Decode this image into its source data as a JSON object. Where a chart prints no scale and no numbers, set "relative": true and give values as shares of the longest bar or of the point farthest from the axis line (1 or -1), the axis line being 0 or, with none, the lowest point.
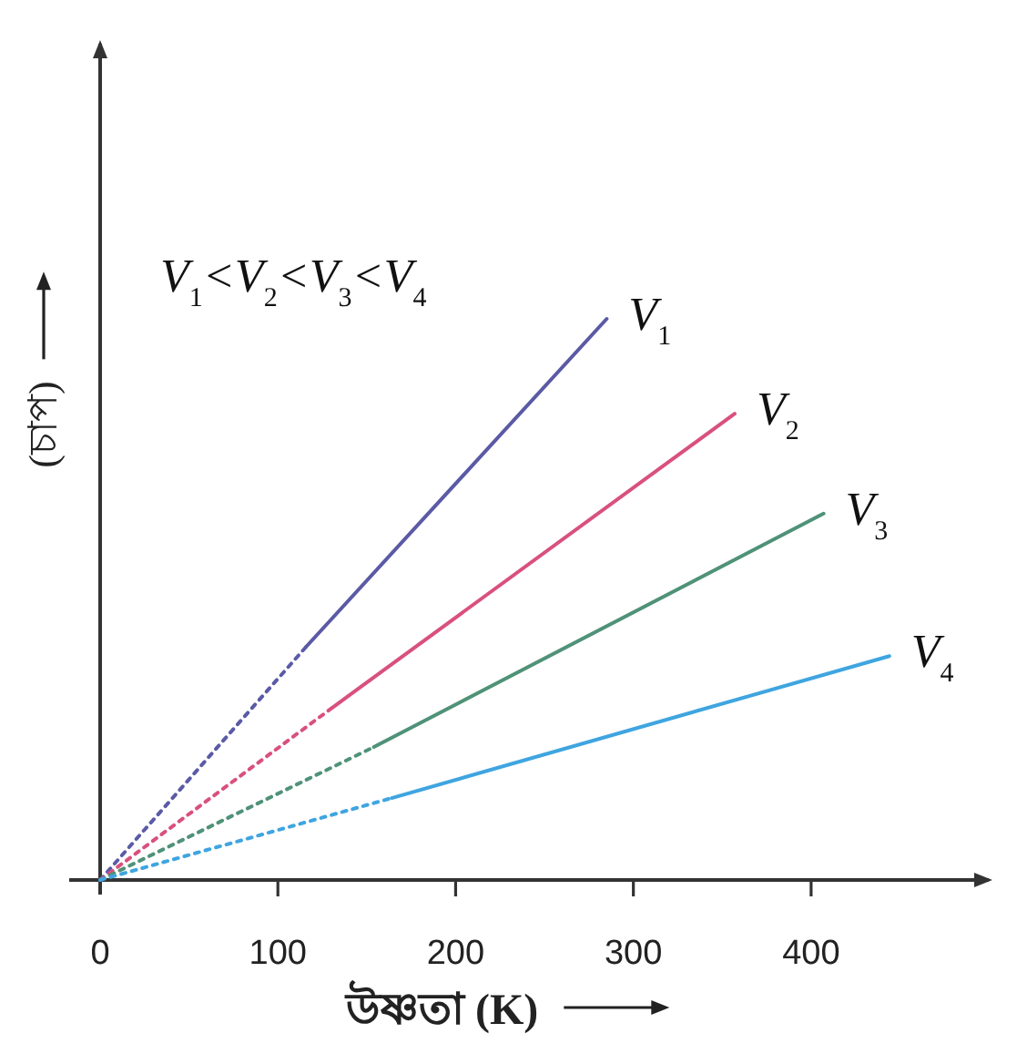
{
  "chart_data": {
    "type": "line",
    "xlabel": "উষ্ণতা (K)",
    "ylabel": "(চাপ)",
    "annotations": [
      "V$_{1}$<V$_{2}$<V$_{3}$<V$_{4}$"
    ],
    "relative": true,
    "xlim": [
      0,
      502
    ],
    "xticks": [
      0,
      100,
      200,
      300,
      400
    ],
    "series": [
      {
        "color": "#5a5aa6",
        "line_style": "dotted",
        "x": [
          0,
          116
        ],
        "values": [
          0,
          0.416
        ]
      },
      {
        "name": "V$_{1}$",
        "color": "#5a5aa6",
        "line_style": "solid",
        "x": [
          116,
          285
        ],
        "values": [
          0.416,
          1
        ]
      },
      {
        "color": "#d9507e",
        "line_style": "dotted",
        "x": [
          0,
          131
        ],
        "values": [
          0,
          0.308
        ]
      },
      {
        "name": "V$_{2}$",
        "color": "#d9507e",
        "line_style": "solid",
        "x": [
          131,
          357
        ],
        "values": [
          0.308,
          0.831
        ]
      },
      {
        "color": "#4f9278",
        "line_style": "dotted",
        "x": [
          0,
          154
        ],
        "values": [
          0,
          0.237
        ]
      },
      {
        "name": "V$_{3}$",
        "color": "#4f9278",
        "line_style": "solid",
        "x": [
          154,
          407
        ],
        "values": [
          0.237,
          0.653
        ]
      },
      {
        "color": "#3fa5e0",
        "line_style": "dotted",
        "x": [
          0,
          164
        ],
        "values": [
          0,
          0.146
        ]
      },
      {
        "name": "V$_{4}$",
        "color": "#3fa5e0",
        "line_style": "solid",
        "x": [
          164,
          444
        ],
        "values": [
          0.146,
          0.399
        ]
      }
    ]
  }
}
